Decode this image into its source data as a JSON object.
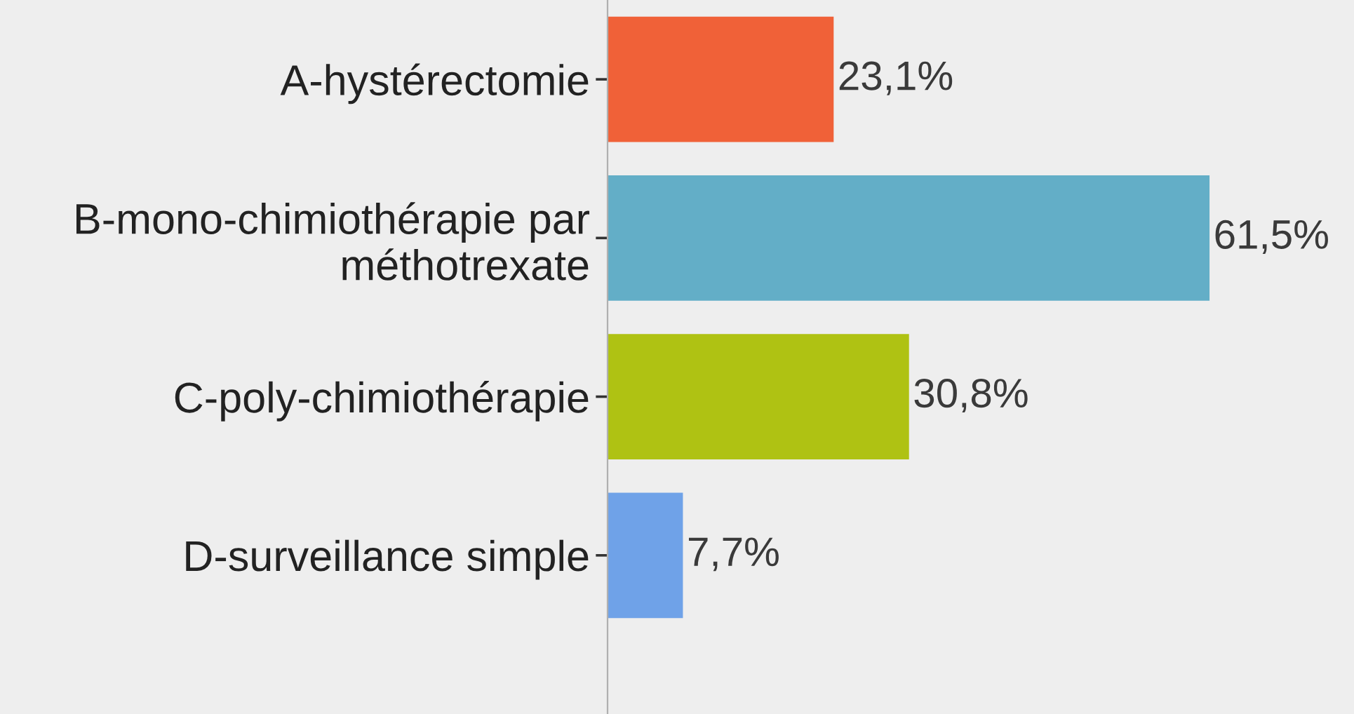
{
  "chart_data": {
    "type": "bar",
    "orientation": "horizontal",
    "categories": [
      "A-hystérectomie",
      "B-mono-chimiothérapie par méthotrexate",
      "C-poly-chimiothérapie",
      "D-surveillance simple"
    ],
    "values": [
      23.1,
      61.5,
      30.8,
      7.7
    ],
    "colors": [
      "#f06138",
      "#63aec7",
      "#afc213",
      "#6fa2e8"
    ],
    "value_labels": [
      "23,1%",
      "61,5%",
      "30,8%",
      "7,7%"
    ]
  }
}
